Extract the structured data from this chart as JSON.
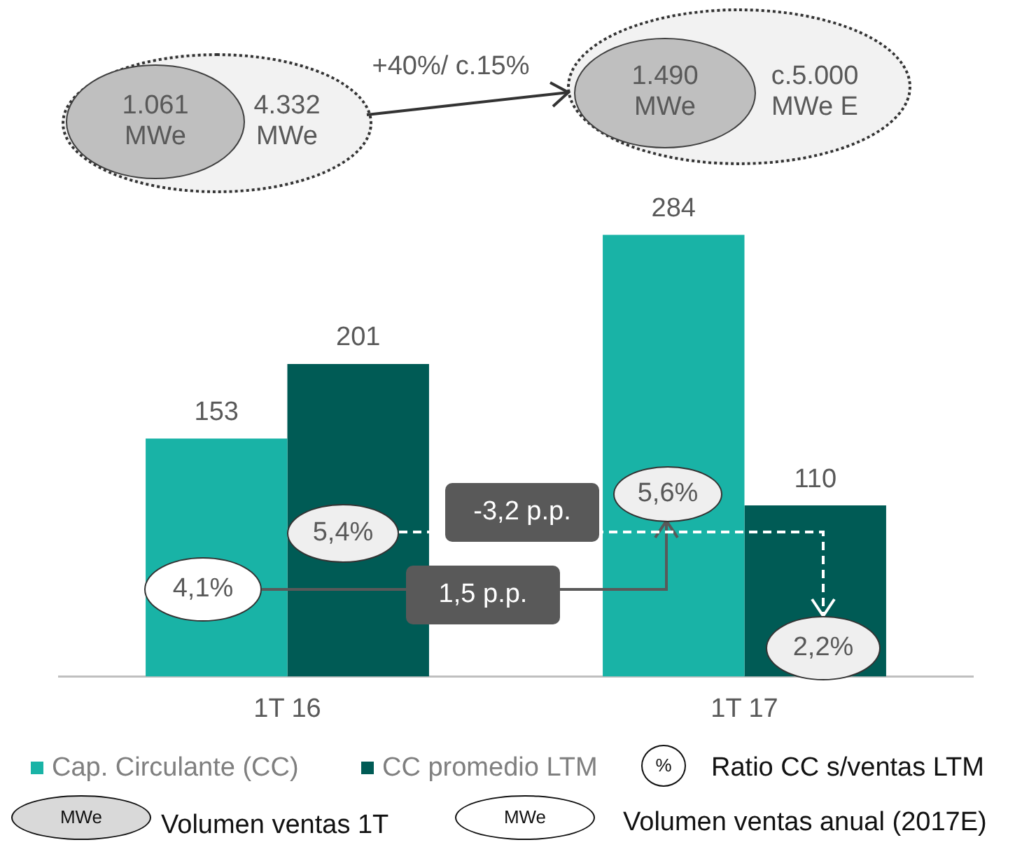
{
  "chart_data": {
    "type": "bar",
    "categories": [
      "1T 16",
      "1T 17"
    ],
    "series": [
      {
        "name": "Cap. Circulante (CC)",
        "color": "#19b3a6",
        "values": [
          153,
          284
        ]
      },
      {
        "name": "CC promedio LTM",
        "color": "#005b55",
        "values": [
          201,
          110
        ]
      }
    ],
    "data_labels": true,
    "grid": false,
    "legend": "bottom",
    "annotations": [
      "1.061 MWe",
      "4.332 MWe",
      "+40%/ c.15%",
      "1.490 MWe",
      "c.5.000 MWe E",
      "4,1%",
      "5,4%",
      "5,6%",
      "2,2%",
      "-3,2 p.p.",
      "1,5  p.p.",
      "%",
      "Ratio CC s/ventas LTM",
      "MWe",
      "Volumen ventas 1T",
      "MWe",
      "Volumen ventas anual (2017E)"
    ]
  }
}
